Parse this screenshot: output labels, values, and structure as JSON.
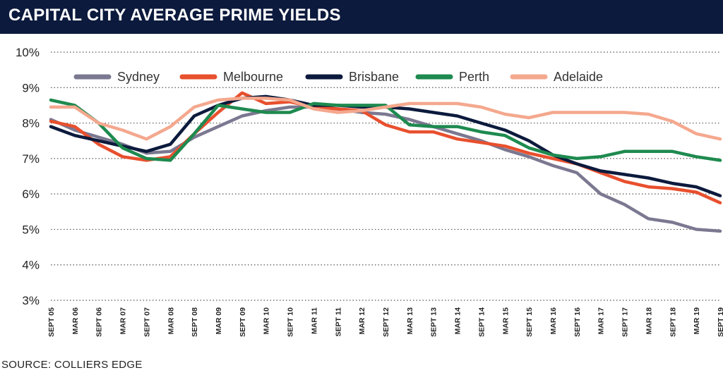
{
  "header": {
    "title": "CAPITAL CITY AVERAGE PRIME YIELDS"
  },
  "footer": {
    "source": "SOURCE: COLLIERS EDGE"
  },
  "colors": {
    "title_bg": "#0c1a3d",
    "Sydney": "#7b7891",
    "Melbourne": "#e8502e",
    "Brisbane": "#0c1a3d",
    "Perth": "#1e8a4f",
    "Adelaide": "#f4a88e"
  },
  "chart_data": {
    "type": "line",
    "title": "CAPITAL CITY AVERAGE PRIME YIELDS",
    "xlabel": "",
    "ylabel": "",
    "ylim": [
      3,
      10
    ],
    "yticks": [
      "3%",
      "4%",
      "5%",
      "6%",
      "7%",
      "8%",
      "9%",
      "10%"
    ],
    "grid": "horizontal dotted",
    "legend": "top",
    "categories": [
      "SEPT 05",
      "MAR 06",
      "SEPT 06",
      "MAR 07",
      "SEPT 07",
      "MAR 08",
      "SEPT 08",
      "MAR 09",
      "SEPT 09",
      "MAR 10",
      "SEPT 10",
      "MAR 11",
      "SEPT 11",
      "MAR 12",
      "SEPT 12",
      "MAR 13",
      "SEPT 13",
      "MAR 14",
      "SEPT 14",
      "MAR 15",
      "SEPT 15",
      "MAR 16",
      "SEPT 16",
      "MAR 17",
      "SEPT 17",
      "MAR 18",
      "SEPT 18",
      "MAR 19",
      "SEPT 19"
    ],
    "series": [
      {
        "name": "Sydney",
        "values": [
          8.1,
          7.8,
          7.6,
          7.4,
          7.15,
          7.2,
          7.6,
          7.9,
          8.2,
          8.35,
          8.45,
          8.45,
          8.4,
          8.3,
          8.25,
          8.1,
          7.9,
          7.7,
          7.5,
          7.25,
          7.05,
          6.8,
          6.6,
          6.0,
          5.7,
          5.3,
          5.2,
          5.0,
          4.95
        ]
      },
      {
        "name": "Melbourne",
        "values": [
          8.05,
          7.9,
          7.4,
          7.05,
          6.95,
          7.05,
          7.7,
          8.3,
          8.85,
          8.55,
          8.6,
          8.45,
          8.4,
          8.35,
          7.95,
          7.75,
          7.75,
          7.55,
          7.45,
          7.35,
          7.15,
          7.0,
          6.85,
          6.6,
          6.35,
          6.2,
          6.15,
          6.05,
          5.75
        ]
      },
      {
        "name": "Brisbane",
        "values": [
          7.9,
          7.65,
          7.5,
          7.35,
          7.2,
          7.4,
          8.2,
          8.5,
          8.7,
          8.75,
          8.65,
          8.5,
          8.5,
          8.45,
          8.45,
          8.4,
          8.3,
          8.2,
          8.0,
          7.8,
          7.5,
          7.1,
          6.85,
          6.65,
          6.55,
          6.45,
          6.3,
          6.2,
          5.95
        ]
      },
      {
        "name": "Perth",
        "values": [
          8.65,
          8.5,
          8.0,
          7.3,
          7.0,
          6.95,
          7.7,
          8.5,
          8.4,
          8.3,
          8.3,
          8.55,
          8.5,
          8.5,
          8.5,
          7.95,
          7.9,
          7.9,
          7.75,
          7.65,
          7.3,
          7.1,
          7.0,
          7.05,
          7.2,
          7.2,
          7.2,
          7.05,
          6.95
        ]
      },
      {
        "name": "Adelaide",
        "values": [
          8.45,
          8.45,
          8.0,
          7.8,
          7.55,
          7.9,
          8.45,
          8.65,
          8.7,
          8.7,
          8.65,
          8.4,
          8.3,
          8.35,
          8.45,
          8.55,
          8.55,
          8.55,
          8.45,
          8.25,
          8.15,
          8.3,
          8.3,
          8.3,
          8.3,
          8.25,
          8.05,
          7.7,
          7.55
        ]
      }
    ]
  }
}
